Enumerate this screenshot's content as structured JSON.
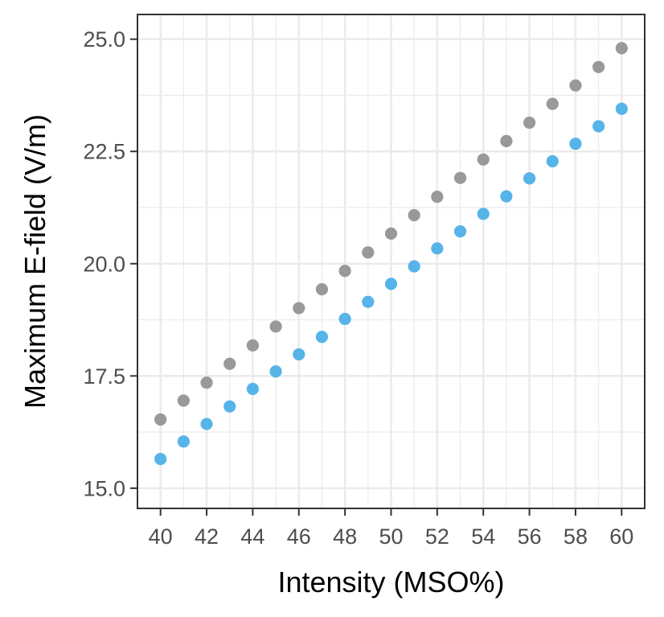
{
  "chart_data": {
    "type": "scatter",
    "xlabel": "Intensity (MSO%)",
    "ylabel": "Maximum E-field (V/m)",
    "xlim": [
      39,
      61
    ],
    "ylim": [
      14.55,
      25.55
    ],
    "x_ticks": [
      40,
      42,
      44,
      46,
      48,
      50,
      52,
      54,
      56,
      58,
      60
    ],
    "y_ticks": [
      15.0,
      17.5,
      20.0,
      22.5,
      25.0
    ],
    "y_tick_labels": [
      "15.0",
      "17.5",
      "20.0",
      "22.5",
      "25.0"
    ],
    "grid": true,
    "colors": {
      "series_1": "#999999",
      "series_2": "#56b4e9",
      "grid": "#ebebeb",
      "panel_border": "#333333"
    },
    "series": [
      {
        "x": [
          40,
          41,
          42,
          43,
          44,
          45,
          46,
          47,
          48,
          49,
          50,
          51,
          52,
          53,
          54,
          55,
          56,
          57,
          58,
          59,
          60
        ],
        "y": [
          16.53,
          16.95,
          17.35,
          17.77,
          18.18,
          18.6,
          19.01,
          19.43,
          19.84,
          20.25,
          20.67,
          21.08,
          21.49,
          21.91,
          22.32,
          22.73,
          23.14,
          23.56,
          23.97,
          24.38,
          24.8
        ]
      },
      {
        "x": [
          40,
          41,
          42,
          43,
          44,
          45,
          46,
          47,
          48,
          49,
          50,
          51,
          52,
          53,
          54,
          55,
          56,
          57,
          58,
          59,
          60
        ],
        "y": [
          15.65,
          16.04,
          16.43,
          16.82,
          17.21,
          17.6,
          17.98,
          18.37,
          18.77,
          19.15,
          19.55,
          19.94,
          20.34,
          20.72,
          21.11,
          21.5,
          21.9,
          22.28,
          22.67,
          23.06,
          23.45
        ]
      }
    ]
  }
}
